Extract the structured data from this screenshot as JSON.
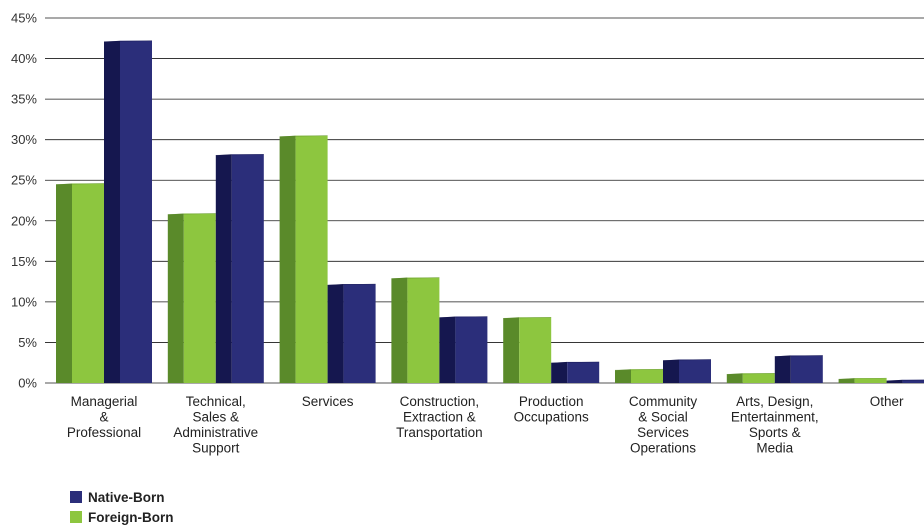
{
  "chart_data": {
    "type": "bar",
    "title": "",
    "xlabel": "",
    "ylabel": "",
    "ylim": [
      0,
      45
    ],
    "y_ticks": [
      "0%",
      "5%",
      "10%",
      "15%",
      "20%",
      "25%",
      "30%",
      "35%",
      "40%",
      "45%"
    ],
    "grid": true,
    "legend_position": "bottom-left",
    "categories": [
      [
        "Managerial",
        "&",
        "Professional"
      ],
      [
        "Technical,",
        "Sales &",
        "Administrative",
        "Support"
      ],
      [
        "Services"
      ],
      [
        "Construction,",
        "Extraction &",
        "Transportation"
      ],
      [
        "Production",
        "Occupations"
      ],
      [
        "Community",
        "& Social",
        "Services",
        "Operations"
      ],
      [
        "Arts, Design,",
        "Entertainment,",
        "Sports &",
        "Media"
      ],
      [
        "Other"
      ]
    ],
    "series": [
      {
        "name": "Foreign-Born",
        "color": "#8dc63f",
        "side_color": "#5a8a2a",
        "values": [
          24.6,
          20.9,
          30.5,
          13.0,
          8.1,
          1.7,
          1.2,
          0.6
        ]
      },
      {
        "name": "Native-Born",
        "color": "#2b2e7a",
        "side_color": "#15174f",
        "values": [
          42.2,
          28.2,
          12.2,
          8.2,
          2.6,
          2.9,
          3.4,
          0.4
        ]
      }
    ],
    "legend_order": [
      "Native-Born",
      "Foreign-Born"
    ]
  }
}
